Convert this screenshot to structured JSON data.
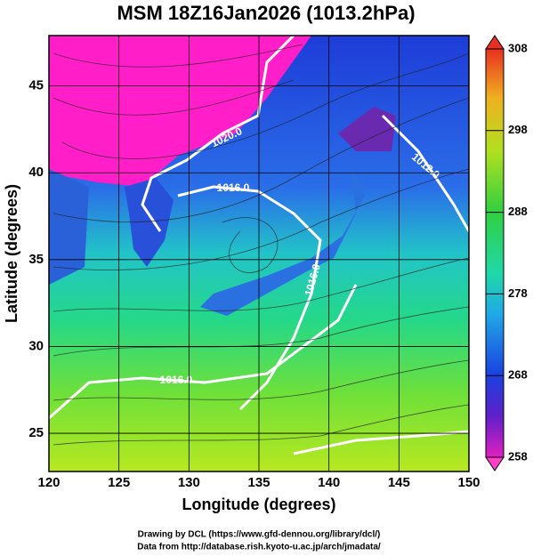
{
  "title": "MSM 18Z16Jan2026 (1013.2hPa)",
  "x_axis": {
    "label": "Longitude (degrees)",
    "lim": [
      120,
      150
    ],
    "ticks": [
      120,
      125,
      130,
      135,
      140,
      145,
      150
    ]
  },
  "y_axis": {
    "label": "Latitude  (degrees)",
    "lim": [
      22.8,
      47.9
    ],
    "ticks": [
      25,
      30,
      35,
      40,
      45
    ]
  },
  "colorbar": {
    "lim": [
      258,
      308
    ],
    "ticks": [
      258,
      268,
      278,
      288,
      298,
      308
    ]
  },
  "contour_labels": [
    "1020.0",
    "1016.0",
    "1012.0",
    "1016.0",
    "1016.0"
  ],
  "credits": [
    "Drawing by DCL (https://www.gfd-dennou.org/library/dcl/)",
    "Data from http://database.rish.kyoto-u.ac.jp/arch/jmadata/"
  ]
}
